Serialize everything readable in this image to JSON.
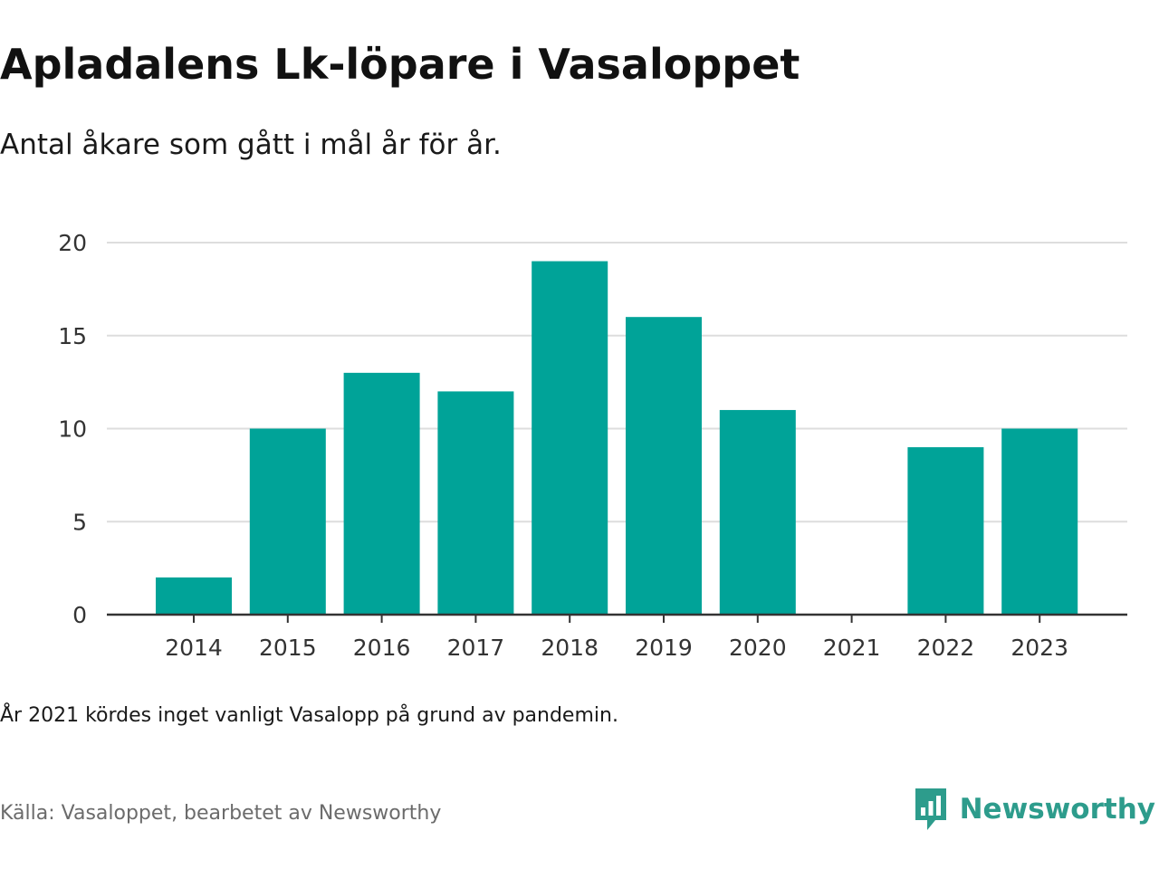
{
  "title": "Apladalens Lk-löpare i Vasaloppet",
  "subtitle": "Antal åkare som gått i mål år för år.",
  "note": "År 2021 kördes inget vanligt Vasalopp på grund av pandemin.",
  "source": "Källa: Vasaloppet, bearbetet av Newsworthy",
  "brand": {
    "name": "Newsworthy",
    "logo_icon": "newsworthy-logo-icon"
  },
  "colors": {
    "bar": "#00A398",
    "grid": "#dddddd",
    "axis": "#333333",
    "brand": "#2d9c8c"
  },
  "chart_data": {
    "type": "bar",
    "categories": [
      "2014",
      "2015",
      "2016",
      "2017",
      "2018",
      "2019",
      "2020",
      "2021",
      "2022",
      "2023"
    ],
    "values": [
      2,
      10,
      13,
      12,
      19,
      16,
      11,
      0,
      9,
      10
    ],
    "yticks": [
      "0",
      "5",
      "10",
      "15",
      "20"
    ],
    "ylim": [
      0,
      20
    ],
    "xlabel": "",
    "ylabel": "",
    "grid": true,
    "legend": "none"
  }
}
